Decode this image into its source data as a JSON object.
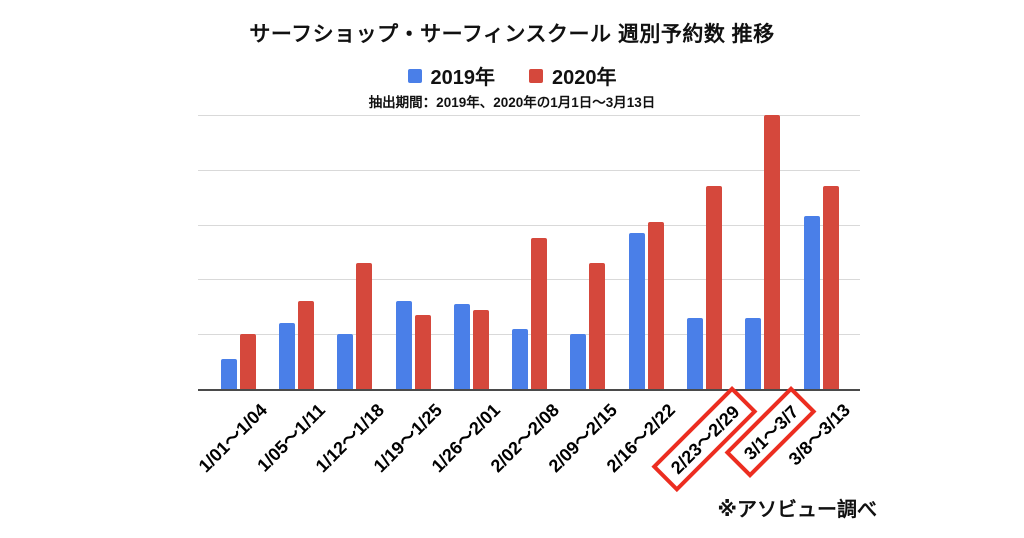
{
  "chart_data": {
    "type": "bar",
    "title": "サーフショップ・サーフィンスクール 週別予約数 推移",
    "subtitle": "抽出期間：2019年、2020年の1月1日〜3月13日",
    "source_note": "※アソビュー調べ",
    "categories": [
      "1/01〜1/04",
      "1/05〜1/11",
      "1/12〜1/18",
      "1/19〜1/25",
      "1/26〜2/01",
      "2/02〜2/08",
      "2/09〜2/15",
      "2/16〜2/22",
      "2/23〜2/29",
      "3/1〜3/7",
      "3/8〜3/13"
    ],
    "series": [
      {
        "name": "2019年",
        "color": "#4A7FE8",
        "values": [
          11,
          24,
          20,
          32,
          31,
          22,
          20,
          57,
          26,
          26,
          63
        ]
      },
      {
        "name": "2020年",
        "color": "#D5483C",
        "values": [
          20,
          32,
          46,
          27,
          29,
          55,
          46,
          61,
          74,
          100,
          74
        ]
      }
    ],
    "ylim": [
      0,
      100
    ],
    "gridline_interval": 20,
    "y_axis_labels_visible": false,
    "grid": "horizontal",
    "legend_position": "top",
    "xlabel": "",
    "ylabel": "",
    "highlighted_categories": [
      "2/23〜2/29",
      "3/1〜3/7"
    ],
    "highlight_box_color": "#EC2D20"
  }
}
